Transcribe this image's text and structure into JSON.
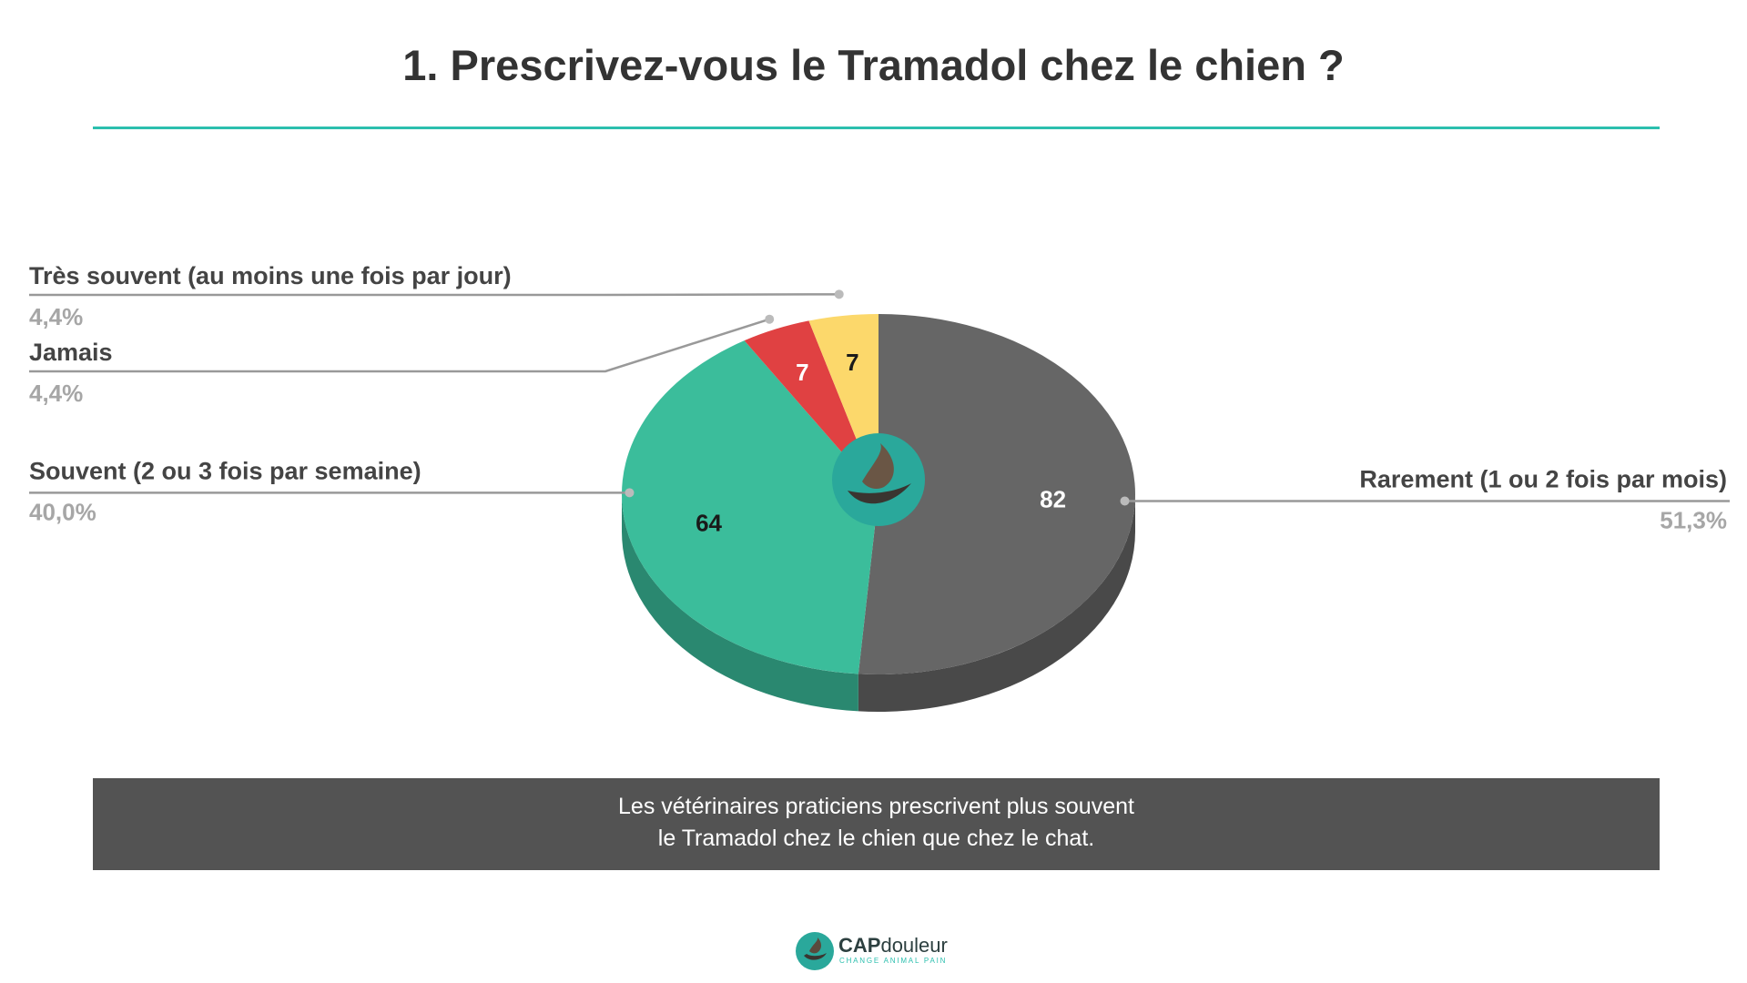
{
  "title": "1. Prescrivez-vous le Tramadol chez le chien ?",
  "chart_data": {
    "type": "pie",
    "title": "1. Prescrivez-vous le Tramadol chez le chien ?",
    "slices": [
      {
        "label": "Rarement (1 ou 2 fois par mois)",
        "value": 82,
        "percent": "51,3%",
        "color": "#666666"
      },
      {
        "label": "Souvent (2 ou 3 fois par semaine)",
        "value": 64,
        "percent": "40,0%",
        "color": "#3bbd9b"
      },
      {
        "label": "Jamais",
        "value": 7,
        "percent": "4,4%",
        "color": "#e04142"
      },
      {
        "label": "Très souvent (au moins une fois par jour)",
        "value": 7,
        "percent": "4,4%",
        "color": "#fcd86b"
      }
    ],
    "start_angle_deg": 0,
    "direction": "clockwise"
  },
  "caption": {
    "line1": "Les vétérinaires praticiens prescrivent plus souvent",
    "line2": "le Tramadol chez le chien que chez le chat."
  },
  "footer": {
    "brand_bold": "CAP",
    "brand_rest": "douleur",
    "tagline": "CHANGE ANIMAL PAIN"
  }
}
